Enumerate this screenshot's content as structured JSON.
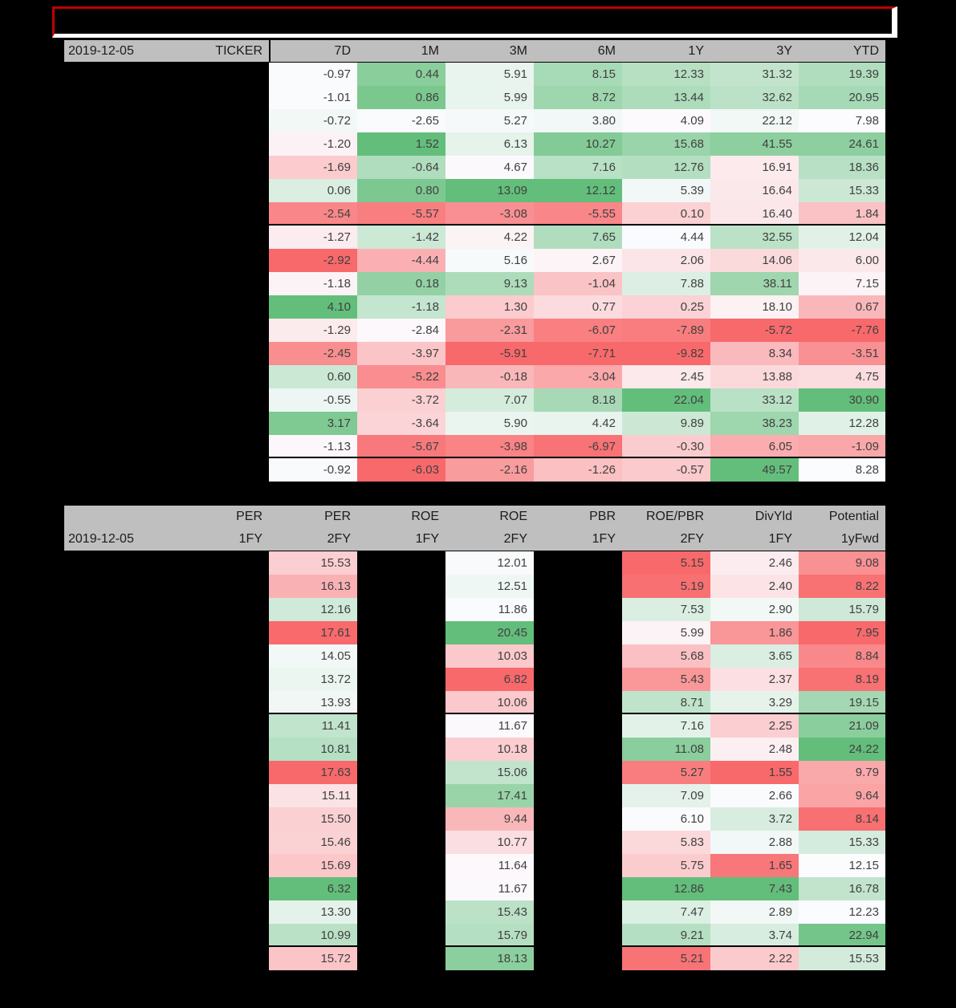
{
  "title_banner": {
    "text": ""
  },
  "colors": {
    "page_bg": "#000000",
    "header_bg": "#BFBFBF",
    "header_text": "#1C1C1C",
    "cell_text": "#404040",
    "title_border_red": "#C00000",
    "title_border_white": "#FFFFFF",
    "scale_low_red": "#F8696B",
    "scale_mid_white": "#FCFCFF",
    "scale_high_green": "#63BE7B"
  },
  "chart_data": [
    {
      "type": "heatmap",
      "name": "performance-table",
      "date": "2019-12-05",
      "row_label_column": "TICKER",
      "row_labels_hidden": true,
      "columns": [
        "7D",
        "1M",
        "3M",
        "6M",
        "1Y",
        "3Y",
        "YTD"
      ],
      "rows": [
        [
          -0.97,
          0.44,
          5.91,
          8.15,
          12.33,
          31.32,
          19.39
        ],
        [
          -1.01,
          0.86,
          5.99,
          8.72,
          13.44,
          32.62,
          20.95
        ],
        [
          -0.72,
          -2.65,
          5.27,
          3.8,
          4.09,
          22.12,
          7.98
        ],
        [
          -1.2,
          1.52,
          6.13,
          10.27,
          15.68,
          41.55,
          24.61
        ],
        [
          -1.69,
          -0.64,
          4.67,
          7.16,
          12.76,
          16.91,
          18.36
        ],
        [
          0.06,
          0.8,
          13.09,
          12.12,
          5.39,
          16.64,
          15.33
        ],
        [
          -2.54,
          -5.57,
          -3.08,
          -5.55,
          0.1,
          16.4,
          1.84
        ],
        [
          -1.27,
          -1.42,
          4.22,
          7.65,
          4.44,
          32.55,
          12.04
        ],
        [
          -2.92,
          -4.44,
          5.16,
          2.67,
          2.06,
          14.06,
          6.0
        ],
        [
          -1.18,
          0.18,
          9.13,
          -1.04,
          7.88,
          38.11,
          7.15
        ],
        [
          4.1,
          -1.18,
          1.3,
          0.77,
          0.25,
          18.1,
          0.67
        ],
        [
          -1.29,
          -2.84,
          -2.31,
          -6.07,
          -7.89,
          -5.72,
          -7.76
        ],
        [
          -2.45,
          -3.97,
          -5.91,
          -7.71,
          -9.82,
          8.34,
          -3.51
        ],
        [
          0.6,
          -5.22,
          -0.18,
          -3.04,
          2.45,
          13.88,
          4.75
        ],
        [
          -0.55,
          -3.72,
          7.07,
          8.18,
          22.04,
          33.12,
          30.9
        ],
        [
          3.17,
          -3.64,
          5.9,
          4.42,
          9.89,
          38.23,
          12.28
        ],
        [
          -1.13,
          -5.67,
          -3.98,
          -6.97,
          -0.3,
          6.05,
          -1.09
        ],
        [
          -0.92,
          -6.03,
          -2.16,
          -1.26,
          -0.57,
          49.57,
          8.28
        ]
      ],
      "group_separators_after_rows": [
        7,
        17
      ],
      "color_scale": "red-white-green, per column, midpoint = column median"
    },
    {
      "type": "heatmap",
      "name": "valuation-table",
      "date": "2019-12-05",
      "columns_row1": [
        "PER",
        "PER",
        "ROE",
        "ROE",
        "PBR",
        "ROE/PBR",
        "DivYld",
        "Potential"
      ],
      "columns_row2": [
        "1FY",
        "2FY",
        "1FY",
        "2FY",
        "1FY",
        "2FY",
        "1FY",
        "1yFwd"
      ],
      "hidden_value_columns": [
        "PER 1FY",
        "ROE 1FY",
        "PBR 1FY"
      ],
      "visible_value_columns": [
        "PER 2FY",
        "ROE 2FY",
        "ROE/PBR 2FY",
        "DivYld 1FY",
        "Potential 1yFwd"
      ],
      "reversed_scale_columns": [
        "PER 2FY"
      ],
      "rows": [
        [
          15.53,
          12.01,
          5.15,
          2.46,
          9.08
        ],
        [
          16.13,
          12.51,
          5.19,
          2.4,
          8.22
        ],
        [
          12.16,
          11.86,
          7.53,
          2.9,
          15.79
        ],
        [
          17.61,
          20.45,
          5.99,
          1.86,
          7.95
        ],
        [
          14.05,
          10.03,
          5.68,
          3.65,
          8.84
        ],
        [
          13.72,
          6.82,
          5.43,
          2.37,
          8.19
        ],
        [
          13.93,
          10.06,
          8.71,
          3.29,
          19.15
        ],
        [
          11.41,
          11.67,
          7.16,
          2.25,
          21.09
        ],
        [
          10.81,
          10.18,
          11.08,
          2.48,
          24.22
        ],
        [
          17.63,
          15.06,
          5.27,
          1.55,
          9.79
        ],
        [
          15.11,
          17.41,
          7.09,
          2.66,
          9.64
        ],
        [
          15.5,
          9.44,
          6.1,
          3.72,
          8.14
        ],
        [
          15.46,
          10.77,
          5.83,
          2.88,
          15.33
        ],
        [
          15.69,
          11.64,
          5.75,
          1.65,
          12.15
        ],
        [
          6.32,
          11.67,
          12.86,
          7.43,
          16.78
        ],
        [
          13.3,
          15.43,
          7.47,
          2.89,
          12.23
        ],
        [
          10.99,
          15.79,
          9.21,
          3.74,
          22.94
        ],
        [
          15.72,
          18.13,
          5.21,
          2.22,
          15.53
        ]
      ],
      "group_separators_after_rows": [
        7,
        17
      ],
      "color_scale": "red-white-green, per column, midpoint = column median"
    }
  ]
}
